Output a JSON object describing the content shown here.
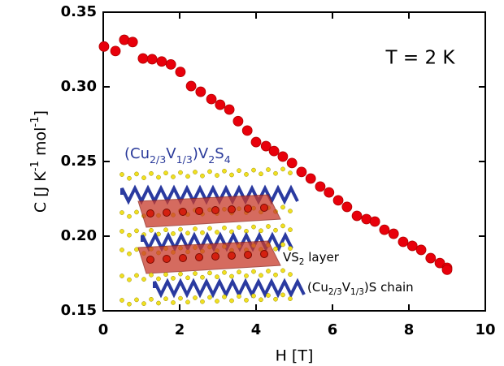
{
  "chart_data": {
    "type": "scatter",
    "xlabel": "H [T]",
    "ylabel_parts": [
      {
        "text": "C  [J K"
      },
      {
        "text": "-1",
        "sup": true
      },
      {
        "text": " mol"
      },
      {
        "text": "-1",
        "sup": true
      },
      {
        "text": "]"
      }
    ],
    "annotation": "T = 2 K",
    "inset_title_parts": [
      {
        "text": "(Cu"
      },
      {
        "text": "2/3",
        "sub": true
      },
      {
        "text": "V"
      },
      {
        "text": "1/3",
        "sub": true
      },
      {
        "text": ")V"
      },
      {
        "text": "2",
        "sub": true
      },
      {
        "text": "S"
      },
      {
        "text": "4",
        "sub": true
      }
    ],
    "inset_layer_parts": [
      {
        "text": "VS"
      },
      {
        "text": "2",
        "sub": true
      },
      {
        "text": " layer"
      }
    ],
    "inset_chain_parts": [
      {
        "text": "(Cu"
      },
      {
        "text": "2/3",
        "sub": true
      },
      {
        "text": "V"
      },
      {
        "text": "1/3",
        "sub": true
      },
      {
        "text": ")S chain"
      }
    ],
    "x": [
      0.02,
      0.32,
      0.55,
      0.77,
      1.04,
      1.28,
      1.53,
      1.77,
      2.02,
      2.3,
      2.55,
      2.83,
      3.06,
      3.3,
      3.53,
      3.77,
      4.0,
      4.26,
      4.47,
      4.7,
      4.94,
      5.19,
      5.43,
      5.68,
      5.91,
      6.15,
      6.38,
      6.64,
      6.89,
      7.11,
      7.36,
      7.6,
      7.85,
      8.09,
      8.32,
      8.57,
      8.81,
      9.0,
      9.0
    ],
    "series": [
      {
        "color": "#e8000b",
        "values": [
          0.327,
          0.324,
          0.3315,
          0.33,
          0.319,
          0.3185,
          0.317,
          0.315,
          0.31,
          0.3005,
          0.2967,
          0.2918,
          0.288,
          0.2848,
          0.277,
          0.2707,
          0.263,
          0.2603,
          0.257,
          0.2533,
          0.249,
          0.243,
          0.2386,
          0.2332,
          0.2293,
          0.224,
          0.2196,
          0.2136,
          0.2114,
          0.2098,
          0.2043,
          0.2016,
          0.1962,
          0.1935,
          0.1908,
          0.1853,
          0.182,
          0.1788,
          0.1775
        ]
      }
    ],
    "xlim": [
      0,
      10
    ],
    "xticks": [
      0,
      2,
      4,
      6,
      8,
      10
    ],
    "ylim": [
      0.15,
      0.35
    ],
    "yticks": [
      0.15,
      {
        "value": 0.2,
        "label": "0.20"
      },
      0.25,
      {
        "value": 0.3,
        "label": "0.30"
      },
      0.35
    ]
  }
}
